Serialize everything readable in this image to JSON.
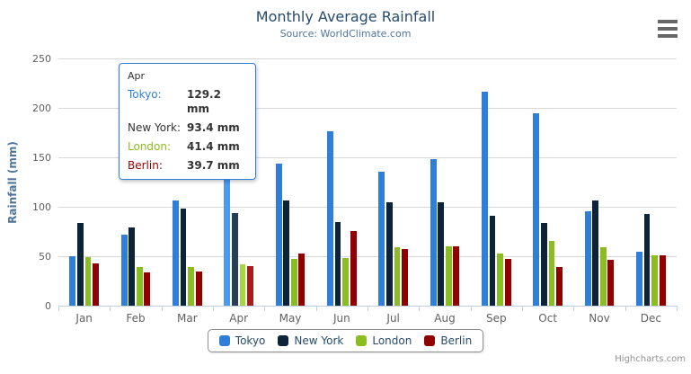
{
  "header": {
    "title": "Monthly Average Rainfall",
    "subtitle": "Source: WorldClimate.com"
  },
  "credits": "Highcharts.com",
  "menu_icon": "hamburger-menu-icon",
  "chart_data": {
    "type": "bar",
    "title": "Monthly Average Rainfall",
    "subtitle": "Source: WorldClimate.com",
    "xlabel": "",
    "ylabel": "Rainfall (mm)",
    "ylim": [
      0,
      250
    ],
    "yticks": [
      0,
      50,
      100,
      150,
      200,
      250
    ],
    "grid": true,
    "legend_position": "bottom",
    "categories": [
      "Jan",
      "Feb",
      "Mar",
      "Apr",
      "May",
      "Jun",
      "Jul",
      "Aug",
      "Sep",
      "Oct",
      "Nov",
      "Dec"
    ],
    "series": [
      {
        "name": "Tokyo",
        "color": "#2f7ed8",
        "hover_color": "#4a99f3",
        "values": [
          49.9,
          71.5,
          106.4,
          129.2,
          144.0,
          176.0,
          135.6,
          148.5,
          216.4,
          194.1,
          95.6,
          54.4
        ]
      },
      {
        "name": "New York",
        "color": "#0d233a",
        "hover_color": "#283e55",
        "values": [
          83.6,
          78.8,
          98.5,
          93.4,
          106.0,
          84.5,
          105.0,
          104.3,
          91.2,
          83.5,
          106.6,
          92.3
        ]
      },
      {
        "name": "London",
        "color": "#8bbc21",
        "hover_color": "#a6d73c",
        "values": [
          48.9,
          38.8,
          39.3,
          41.4,
          47.0,
          48.3,
          59.0,
          59.6,
          52.4,
          65.2,
          59.3,
          51.2
        ]
      },
      {
        "name": "Berlin",
        "color": "#910000",
        "hover_color": "#ac1b1b",
        "values": [
          42.4,
          33.2,
          34.5,
          39.7,
          52.6,
          75.5,
          57.4,
          60.4,
          47.6,
          39.1,
          46.8,
          51.1
        ]
      }
    ],
    "hovered_category": "Apr"
  },
  "tooltip": {
    "header": "Apr",
    "border_color": "#2f7ed8",
    "rows": [
      {
        "label": "Tokyo:",
        "value": "129.2 mm",
        "color": "#2f7ed8"
      },
      {
        "label": "New York:",
        "value": "93.4 mm",
        "color": "#333333"
      },
      {
        "label": "London:",
        "value": "41.4 mm",
        "color": "#8bbc21"
      },
      {
        "label": "Berlin:",
        "value": "39.7 mm",
        "color": "#910000"
      }
    ]
  },
  "colors": {
    "title": "#274b6d",
    "subtitle": "#4d759e",
    "axis_labels": "#606060",
    "gridline": "#d8d8d8",
    "axis_line": "#c0d0e0",
    "legend_text": "#274b6d",
    "credits": "#909090"
  }
}
